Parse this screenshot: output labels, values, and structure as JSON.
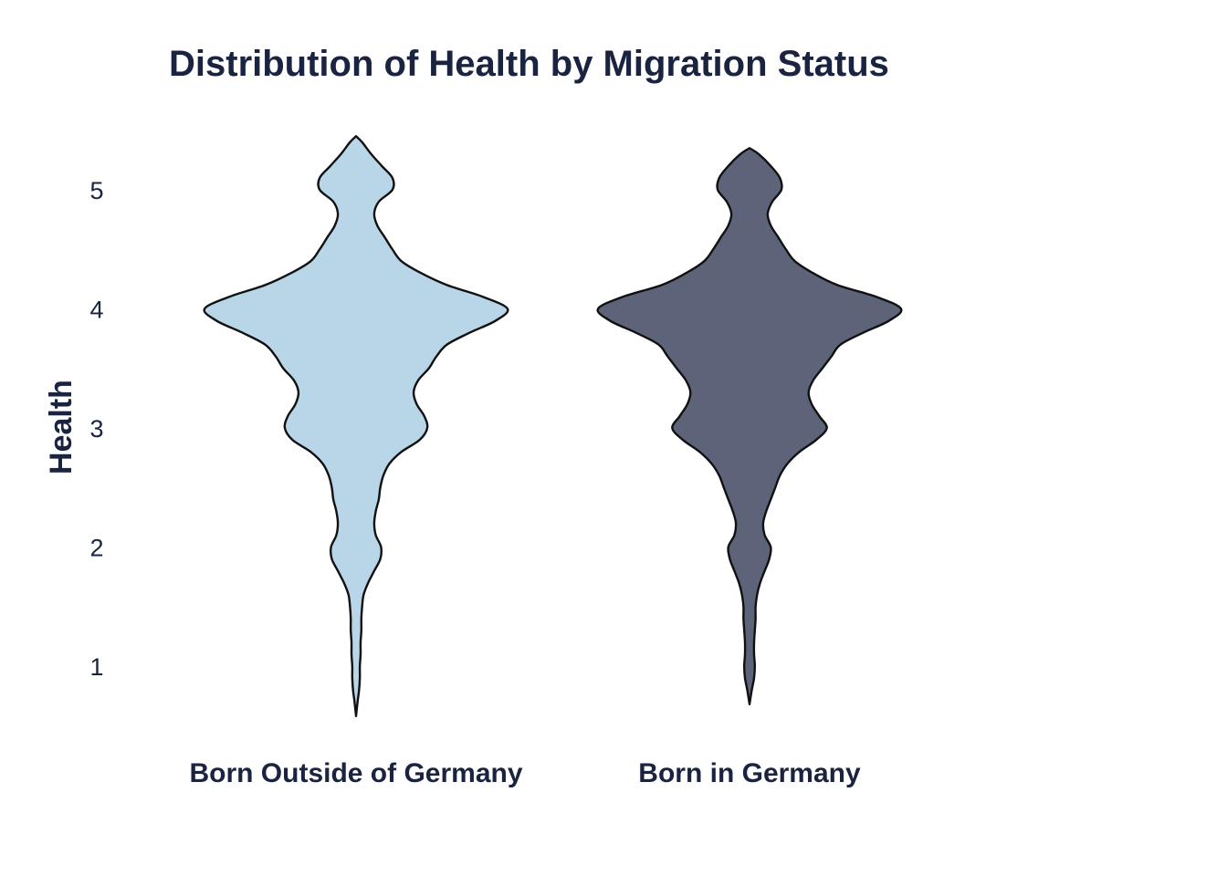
{
  "chart_data": {
    "type": "violin",
    "title": "Distribution of Health by Migration Status",
    "xlabel": "",
    "ylabel": "Health",
    "ylim": [
      0.3,
      5.7
    ],
    "yticks": [
      1,
      2,
      3,
      4,
      5
    ],
    "grid": false,
    "legend": "none",
    "categories": [
      "Born Outside of Germany",
      "Born in Germany"
    ],
    "series": [
      {
        "category": "Born Outside of Germany",
        "color": "#b8d6e8",
        "range": [
          0.58,
          5.45
        ],
        "density": [
          [
            0.58,
            0.0
          ],
          [
            0.7,
            0.01
          ],
          [
            0.8,
            0.02
          ],
          [
            0.9,
            0.025
          ],
          [
            1.0,
            0.025
          ],
          [
            1.1,
            0.03
          ],
          [
            1.2,
            0.03
          ],
          [
            1.3,
            0.035
          ],
          [
            1.4,
            0.035
          ],
          [
            1.5,
            0.04
          ],
          [
            1.6,
            0.05
          ],
          [
            1.7,
            0.08
          ],
          [
            1.8,
            0.12
          ],
          [
            1.9,
            0.16
          ],
          [
            2.0,
            0.165
          ],
          [
            2.1,
            0.13
          ],
          [
            2.2,
            0.12
          ],
          [
            2.3,
            0.13
          ],
          [
            2.4,
            0.15
          ],
          [
            2.5,
            0.16
          ],
          [
            2.6,
            0.18
          ],
          [
            2.7,
            0.22
          ],
          [
            2.8,
            0.3
          ],
          [
            2.9,
            0.42
          ],
          [
            3.0,
            0.47
          ],
          [
            3.1,
            0.45
          ],
          [
            3.2,
            0.4
          ],
          [
            3.3,
            0.38
          ],
          [
            3.4,
            0.41
          ],
          [
            3.5,
            0.48
          ],
          [
            3.6,
            0.53
          ],
          [
            3.7,
            0.6
          ],
          [
            3.8,
            0.75
          ],
          [
            3.9,
            0.92
          ],
          [
            4.0,
            1.0
          ],
          [
            4.1,
            0.84
          ],
          [
            4.2,
            0.6
          ],
          [
            4.3,
            0.43
          ],
          [
            4.4,
            0.3
          ],
          [
            4.5,
            0.24
          ],
          [
            4.6,
            0.19
          ],
          [
            4.7,
            0.14
          ],
          [
            4.8,
            0.12
          ],
          [
            4.9,
            0.15
          ],
          [
            5.0,
            0.24
          ],
          [
            5.1,
            0.24
          ],
          [
            5.2,
            0.17
          ],
          [
            5.3,
            0.1
          ],
          [
            5.4,
            0.04
          ],
          [
            5.45,
            0.0
          ]
        ]
      },
      {
        "category": "Born in Germany",
        "color": "#5d6479",
        "range": [
          0.68,
          5.35
        ],
        "density": [
          [
            0.68,
            0.0
          ],
          [
            0.8,
            0.015
          ],
          [
            0.9,
            0.03
          ],
          [
            1.0,
            0.035
          ],
          [
            1.1,
            0.03
          ],
          [
            1.2,
            0.03
          ],
          [
            1.3,
            0.035
          ],
          [
            1.4,
            0.04
          ],
          [
            1.5,
            0.04
          ],
          [
            1.6,
            0.05
          ],
          [
            1.7,
            0.07
          ],
          [
            1.8,
            0.1
          ],
          [
            1.9,
            0.13
          ],
          [
            2.0,
            0.14
          ],
          [
            2.1,
            0.1
          ],
          [
            2.2,
            0.09
          ],
          [
            2.3,
            0.11
          ],
          [
            2.4,
            0.14
          ],
          [
            2.5,
            0.17
          ],
          [
            2.6,
            0.2
          ],
          [
            2.7,
            0.25
          ],
          [
            2.8,
            0.33
          ],
          [
            2.9,
            0.44
          ],
          [
            3.0,
            0.51
          ],
          [
            3.1,
            0.46
          ],
          [
            3.2,
            0.41
          ],
          [
            3.3,
            0.39
          ],
          [
            3.4,
            0.42
          ],
          [
            3.5,
            0.48
          ],
          [
            3.6,
            0.54
          ],
          [
            3.7,
            0.6
          ],
          [
            3.8,
            0.75
          ],
          [
            3.9,
            0.92
          ],
          [
            4.0,
            1.0
          ],
          [
            4.1,
            0.84
          ],
          [
            4.2,
            0.58
          ],
          [
            4.3,
            0.42
          ],
          [
            4.4,
            0.3
          ],
          [
            4.5,
            0.24
          ],
          [
            4.6,
            0.19
          ],
          [
            4.7,
            0.14
          ],
          [
            4.8,
            0.12
          ],
          [
            4.9,
            0.15
          ],
          [
            5.0,
            0.21
          ],
          [
            5.1,
            0.2
          ],
          [
            5.2,
            0.14
          ],
          [
            5.3,
            0.06
          ],
          [
            5.35,
            0.0
          ]
        ]
      }
    ]
  },
  "colors": {
    "text": "#1a2340",
    "outline": "#111111",
    "background": "#ffffff"
  }
}
